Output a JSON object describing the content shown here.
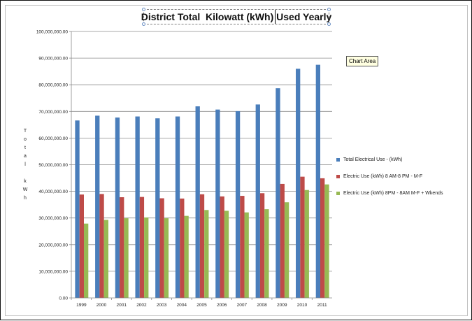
{
  "window": {
    "tooltip": "Chart Area"
  },
  "chart_data": {
    "type": "bar",
    "title_parts": [
      "District Total  Kilowatt (kWh)",
      " Used Yearly"
    ],
    "ylabel_lines": [
      "T",
      "o",
      "t",
      "a",
      "l",
      "",
      "k",
      "W",
      "h"
    ],
    "xlabel": "",
    "categories": [
      "1999",
      "2000",
      "2001",
      "2002",
      "2003",
      "2004",
      "2005",
      "2006",
      "2007",
      "2008",
      "2009",
      "2010",
      "2011"
    ],
    "ylim": [
      0,
      100000000
    ],
    "ytick_values": [
      0,
      10000000,
      20000000,
      30000000,
      40000000,
      50000000,
      60000000,
      70000000,
      80000000,
      90000000,
      100000000
    ],
    "ytick_labels": [
      "0.00",
      "10,000,000.00",
      "20,000,000.00",
      "30,000,000.00",
      "40,000,000.00",
      "50,000,000.00",
      "60,000,000.00",
      "70,000,000.00",
      "80,000,000.00",
      "90,000,000.00",
      "100,000,000.00"
    ],
    "grid": true,
    "legend_position": "right",
    "series": [
      {
        "name": "Total Electrical Use - (kWh)",
        "color": "#4a7ebb",
        "values": [
          66600000,
          68400000,
          67700000,
          68100000,
          67400000,
          68100000,
          71900000,
          70700000,
          70100000,
          72600000,
          78700000,
          86000000,
          87500000
        ]
      },
      {
        "name": "Electric Use (kWh) 8 AM-8 PM - M-F",
        "color": "#be4b48",
        "values": [
          38800000,
          39000000,
          37800000,
          37900000,
          37400000,
          37300000,
          38900000,
          38100000,
          38300000,
          39300000,
          42800000,
          45500000,
          44900000
        ]
      },
      {
        "name": "Electric Use (kWh) 8PM - 8AM M-F + Wkends",
        "color": "#98b954",
        "values": [
          27900000,
          29300000,
          29900000,
          30200000,
          29900000,
          30800000,
          33000000,
          32700000,
          32100000,
          33300000,
          35900000,
          40500000,
          42600000
        ]
      }
    ]
  }
}
